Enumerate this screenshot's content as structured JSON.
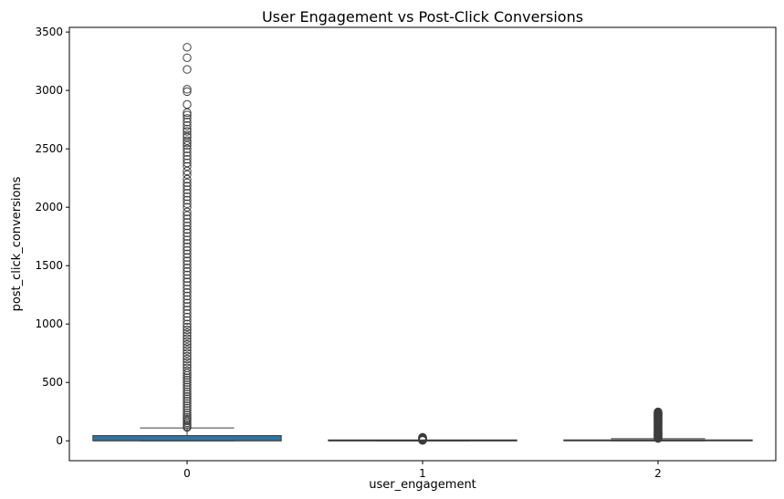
{
  "chart_data": {
    "type": "box",
    "title": "User Engagement vs Post-Click Conversions",
    "xlabel": "user_engagement",
    "ylabel": "post_click_conversions",
    "categories": [
      "0",
      "1",
      "2"
    ],
    "yticks": [
      0,
      500,
      1000,
      1500,
      2000,
      2500,
      3000,
      3500
    ],
    "ylim": [
      -170,
      3540
    ],
    "grid": false,
    "legend": "none",
    "colors": {
      "box_fill": [
        "#3274a1",
        "#3274a1",
        "#3274a1"
      ],
      "line": "#3d3d3d",
      "axis": "#000000"
    },
    "boxes": [
      {
        "category": "0",
        "whislo": 0,
        "q1": 0,
        "med": 1,
        "q3": 45,
        "whishi": 110,
        "fliers": [
          3370,
          3280,
          3180,
          3010,
          2990,
          2880,
          2810,
          2790,
          2760,
          2730,
          2700,
          2670,
          2650,
          2620,
          2600,
          2570,
          2550,
          2530,
          2500,
          2470,
          2440,
          2410,
          2380,
          2350,
          2310,
          2280,
          2240,
          2210,
          2180,
          2150,
          2120,
          2090,
          2060,
          2030,
          2000,
          1960,
          1930,
          1900,
          1870,
          1840,
          1810,
          1780,
          1750,
          1720,
          1690,
          1660,
          1630,
          1600,
          1570,
          1540,
          1510,
          1480,
          1450,
          1420,
          1390,
          1360,
          1330,
          1300,
          1270,
          1240,
          1210,
          1180,
          1150,
          1120,
          1090,
          1060,
          1030,
          1000,
          975,
          950,
          925,
          900,
          875,
          850,
          825,
          800,
          775,
          750,
          725,
          700,
          675,
          650,
          625,
          600,
          580,
          560,
          540,
          520,
          500,
          480,
          460,
          440,
          420,
          400,
          380,
          360,
          340,
          320,
          300,
          280,
          260,
          240,
          220,
          200,
          185,
          170,
          155,
          140,
          125,
          115
        ]
      },
      {
        "category": "1",
        "whislo": 0,
        "q1": 0,
        "med": 0,
        "q3": 1,
        "whishi": 2,
        "fliers": [
          3,
          5,
          7,
          9,
          11,
          13,
          15,
          17,
          19,
          21,
          23,
          25,
          27,
          29,
          31
        ]
      },
      {
        "category": "2",
        "whislo": 0,
        "q1": 0,
        "med": 2,
        "q3": 8,
        "whishi": 18,
        "fliers": [
          20,
          24,
          28,
          32,
          36,
          40,
          44,
          48,
          52,
          56,
          60,
          64,
          68,
          72,
          76,
          80,
          84,
          88,
          92,
          96,
          100,
          104,
          108,
          112,
          116,
          120,
          124,
          128,
          132,
          136,
          140,
          144,
          148,
          152,
          156,
          160,
          164,
          168,
          172,
          176,
          180,
          184,
          188,
          192,
          196,
          200,
          204,
          208,
          212,
          216,
          220,
          224,
          228,
          232,
          236,
          240,
          244,
          248
        ]
      }
    ]
  }
}
